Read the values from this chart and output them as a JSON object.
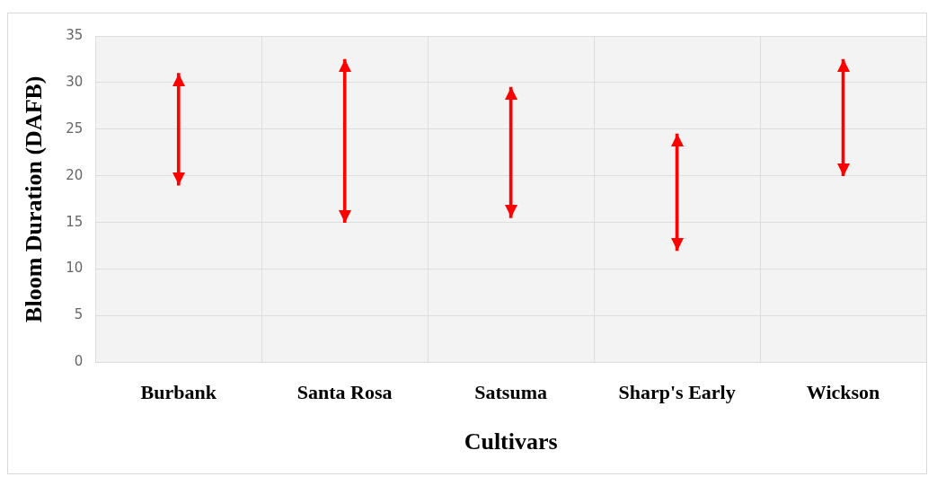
{
  "chart_data": {
    "type": "bar",
    "xlabel": "Cultivars",
    "ylabel": "Bloom Duration (DAFB)",
    "categories": [
      "Burbank",
      "Santa Rosa",
      "Satsuma",
      "Sharp's Early",
      "Wickson"
    ],
    "base": [
      19,
      15,
      15.5,
      12,
      20
    ],
    "values": [
      12,
      17.5,
      14,
      12.5,
      12.5
    ],
    "color": "#ff0000",
    "ylim": [
      0,
      35
    ],
    "yticks": [
      0,
      5,
      10,
      15,
      20,
      25,
      30,
      35
    ],
    "grid": true,
    "legend": false
  }
}
